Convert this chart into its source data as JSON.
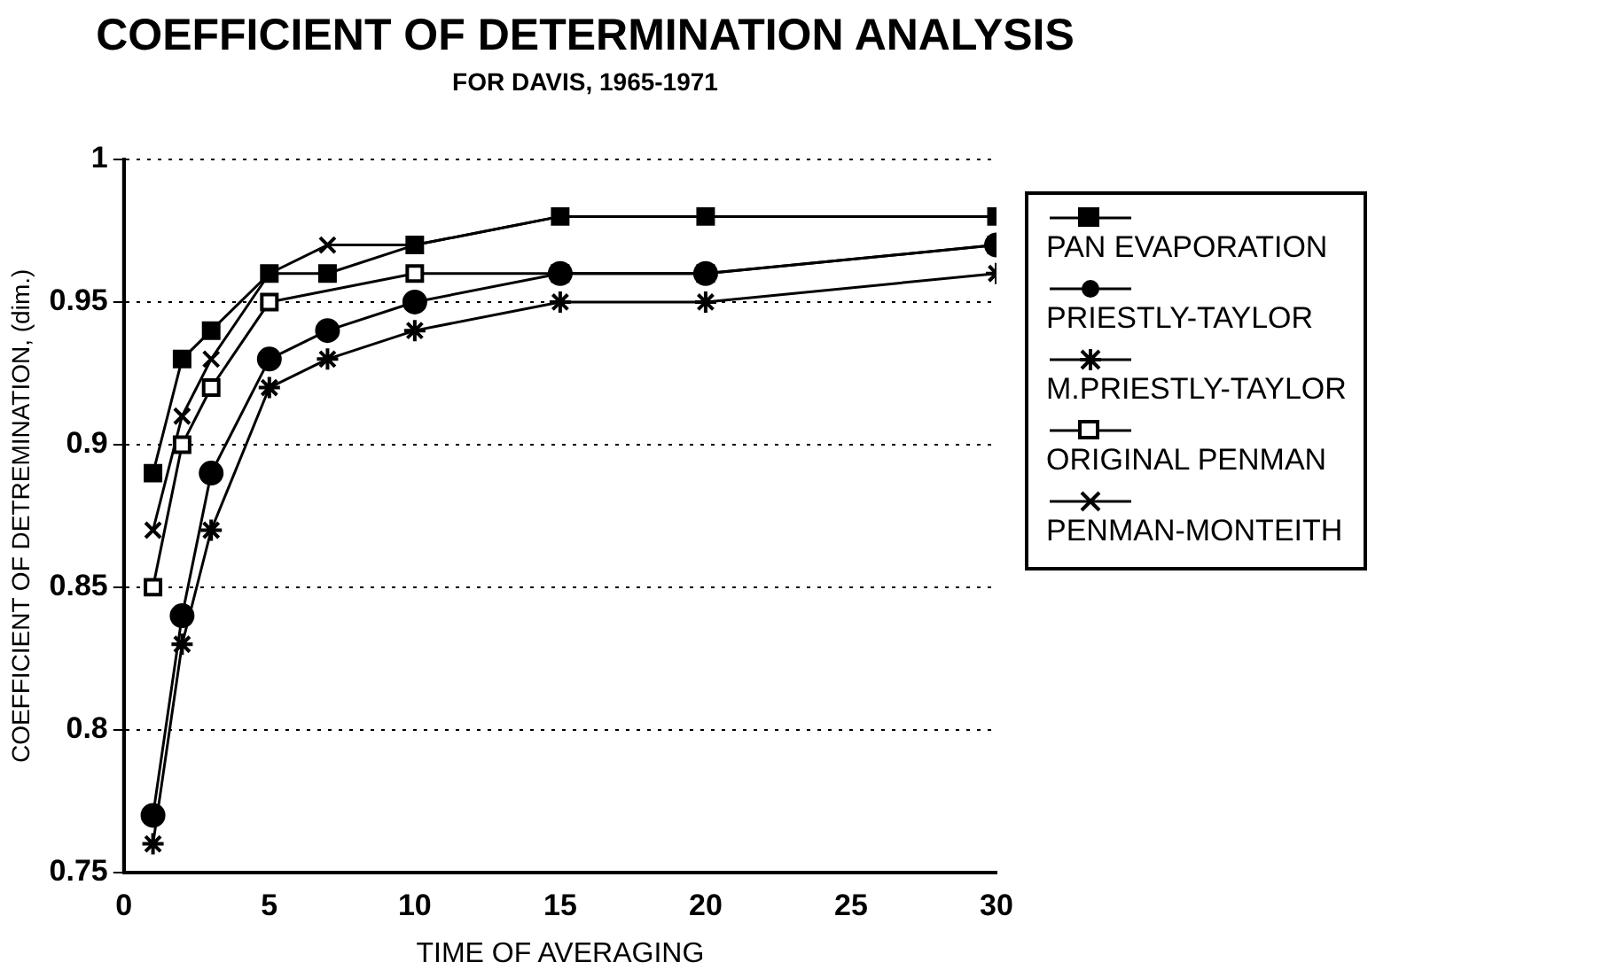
{
  "chart_data": {
    "type": "line",
    "title": "COEFFICIENT OF DETERMINATION ANALYSIS",
    "subtitle": "FOR DAVIS, 1965-1971",
    "xlabel": "TIME OF AVERAGING",
    "ylabel": "COEFFICIENT OF DETREMINATION, (dim.)",
    "x": [
      1,
      2,
      3,
      5,
      7,
      10,
      15,
      20,
      30
    ],
    "series": [
      {
        "name": "PAN EVAPORATION",
        "color": "#000000",
        "marker": "square",
        "values": [
          0.89,
          0.93,
          0.94,
          0.96,
          0.96,
          0.97,
          0.98,
          0.98,
          0.98
        ]
      },
      {
        "name": "PRIESTLY-TAYLOR",
        "color": "#000000",
        "marker": "circle",
        "values": [
          0.77,
          0.84,
          0.89,
          0.93,
          0.94,
          0.95,
          0.96,
          0.96,
          0.97
        ]
      },
      {
        "name": "M.PRIESTLY-TAYLOR",
        "color": "#000000",
        "marker": "cross",
        "values": [
          0.76,
          0.83,
          0.87,
          0.92,
          0.93,
          0.94,
          0.95,
          0.95,
          0.96
        ]
      },
      {
        "name": "ORIGINAL PENMAN",
        "color": "#000000",
        "marker": "square",
        "x": [
          1,
          2,
          3,
          5,
          10,
          15,
          20,
          30
        ],
        "values": [
          0.85,
          0.9,
          0.92,
          0.95,
          0.96,
          0.96,
          0.96,
          0.97
        ]
      },
      {
        "name": "PENMAN-MONTEITH",
        "color": "#000000",
        "marker": "cross",
        "values": [
          0.87,
          0.91,
          0.93,
          0.96,
          0.97,
          0.97,
          0.98,
          0.98,
          0.98
        ]
      }
    ],
    "xlim": [
      0,
      30
    ],
    "xticks": [
      0,
      5,
      10,
      15,
      20,
      25,
      30
    ],
    "ylim": [
      0.75,
      1
    ],
    "yticks": [
      0.75,
      0.8,
      0.85,
      0.9,
      0.95,
      1
    ],
    "grid": "y",
    "legend": "right"
  }
}
